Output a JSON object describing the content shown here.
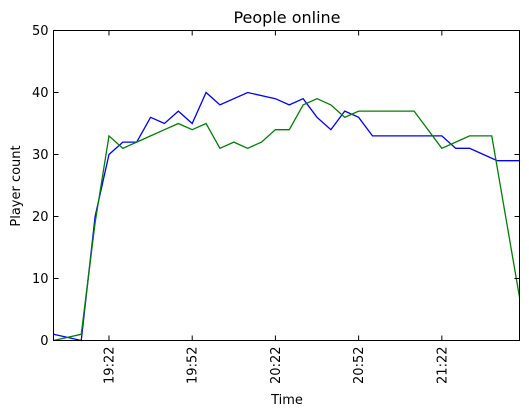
{
  "chart_data": {
    "type": "line",
    "title": "People online",
    "xlabel": "Time",
    "ylabel": "Player count",
    "ylim": [
      0,
      50
    ],
    "yticks": [
      0,
      10,
      20,
      30,
      40,
      50
    ],
    "xlim": [
      "19:02",
      "21:50"
    ],
    "xticks": [
      "19:22",
      "19:52",
      "20:22",
      "20:52",
      "21:22"
    ],
    "grid": false,
    "series": [
      {
        "color": "#0000ff",
        "points": [
          [
            "19:02",
            1
          ],
          [
            "19:12",
            0
          ],
          [
            "19:17",
            20
          ],
          [
            "19:22",
            30
          ],
          [
            "19:27",
            32
          ],
          [
            "19:32",
            32
          ],
          [
            "19:37",
            36
          ],
          [
            "19:42",
            35
          ],
          [
            "19:47",
            37
          ],
          [
            "19:52",
            35
          ],
          [
            "19:57",
            40
          ],
          [
            "20:02",
            38
          ],
          [
            "20:12",
            40
          ],
          [
            "20:22",
            39
          ],
          [
            "20:27",
            38
          ],
          [
            "20:32",
            39
          ],
          [
            "20:37",
            36
          ],
          [
            "20:42",
            34
          ],
          [
            "20:47",
            37
          ],
          [
            "20:52",
            36
          ],
          [
            "20:57",
            33
          ],
          [
            "21:12",
            33
          ],
          [
            "21:22",
            33
          ],
          [
            "21:27",
            31
          ],
          [
            "21:32",
            31
          ],
          [
            "21:37",
            30
          ],
          [
            "21:42",
            29
          ],
          [
            "21:50",
            29
          ]
        ]
      },
      {
        "color": "#008000",
        "points": [
          [
            "19:02",
            0
          ],
          [
            "19:12",
            1
          ],
          [
            "19:17",
            19
          ],
          [
            "19:22",
            33
          ],
          [
            "19:27",
            31
          ],
          [
            "19:32",
            32
          ],
          [
            "19:37",
            33
          ],
          [
            "19:42",
            34
          ],
          [
            "19:47",
            35
          ],
          [
            "19:52",
            34
          ],
          [
            "19:57",
            35
          ],
          [
            "20:02",
            31
          ],
          [
            "20:07",
            32
          ],
          [
            "20:12",
            31
          ],
          [
            "20:17",
            32
          ],
          [
            "20:22",
            34
          ],
          [
            "20:27",
            34
          ],
          [
            "20:32",
            38
          ],
          [
            "20:37",
            39
          ],
          [
            "20:42",
            38
          ],
          [
            "20:47",
            36
          ],
          [
            "20:52",
            37
          ],
          [
            "21:02",
            37
          ],
          [
            "21:12",
            37
          ],
          [
            "21:22",
            31
          ],
          [
            "21:27",
            32
          ],
          [
            "21:32",
            33
          ],
          [
            "21:37",
            33
          ],
          [
            "21:40",
            33
          ],
          [
            "21:50",
            7
          ]
        ]
      }
    ]
  }
}
